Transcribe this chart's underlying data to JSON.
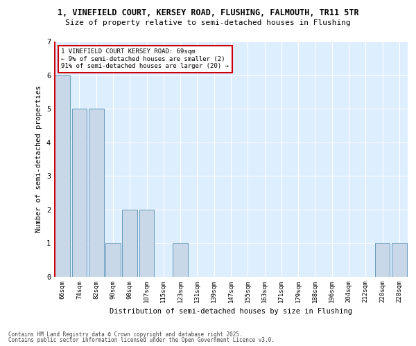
{
  "title_line1": "1, VINEFIELD COURT, KERSEY ROAD, FLUSHING, FALMOUTH, TR11 5TR",
  "title_line2": "Size of property relative to semi-detached houses in Flushing",
  "xlabel": "Distribution of semi-detached houses by size in Flushing",
  "ylabel": "Number of semi-detached properties",
  "categories": [
    "66sqm",
    "74sqm",
    "82sqm",
    "90sqm",
    "98sqm",
    "107sqm",
    "115sqm",
    "123sqm",
    "131sqm",
    "139sqm",
    "147sqm",
    "155sqm",
    "163sqm",
    "171sqm",
    "179sqm",
    "188sqm",
    "196sqm",
    "204sqm",
    "212sqm",
    "220sqm",
    "228sqm"
  ],
  "values": [
    6,
    5,
    5,
    1,
    2,
    2,
    0,
    1,
    0,
    0,
    0,
    0,
    0,
    0,
    0,
    0,
    0,
    0,
    0,
    1,
    1
  ],
  "bar_color": "#c8d8e8",
  "bar_edge_color": "#6699bb",
  "highlight_bar_index": 0,
  "highlight_color": "#cc0000",
  "annotation_text": "1 VINEFIELD COURT KERSEY ROAD: 69sqm\n← 9% of semi-detached houses are smaller (2)\n91% of semi-detached houses are larger (20) →",
  "annotation_box_color": "white",
  "annotation_box_edge": "#cc0000",
  "ylim": [
    0,
    7
  ],
  "yticks": [
    0,
    1,
    2,
    3,
    4,
    5,
    6,
    7
  ],
  "background_color": "#ddeeff",
  "grid_color": "white",
  "footer_line1": "Contains HM Land Registry data © Crown copyright and database right 2025.",
  "footer_line2": "Contains public sector information licensed under the Open Government Licence v3.0."
}
